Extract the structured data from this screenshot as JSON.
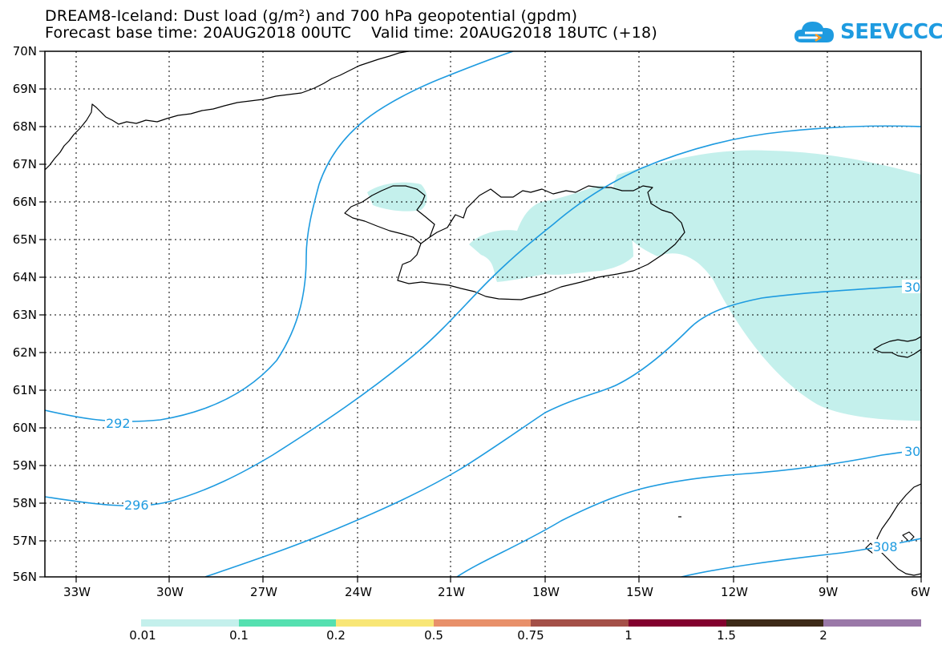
{
  "header": {
    "title": "DREAM8-Iceland: Dust load (g/m²) and 700 hPa geopotential (gpdm)",
    "base_time": "Forecast base time: 20AUG2018 00UTC",
    "valid_time": "Valid time: 20AUG2018 18UTC (+18)"
  },
  "logo": {
    "text": "SEEVCCC",
    "icon": "cloud-icon",
    "color": "#1e9be0"
  },
  "map": {
    "lat_labels": [
      "70N",
      "69N",
      "68N",
      "67N",
      "66N",
      "65N",
      "64N",
      "63N",
      "62N",
      "61N",
      "60N",
      "59N",
      "58N",
      "57N",
      "56N"
    ],
    "lon_labels": [
      "33W",
      "30W",
      "27W",
      "24W",
      "21W",
      "18W",
      "15W",
      "12W",
      "9W",
      "6W"
    ],
    "contour_color": "#1e9be0",
    "dust_color": "#c4f0ec",
    "contour_labels": [
      "292",
      "296",
      "30",
      "30",
      "308"
    ]
  },
  "legend": {
    "colors": [
      "#c4f0ec",
      "#55e0b0",
      "#f8e676",
      "#e8906a",
      "#a45048",
      "#82002e",
      "#3d2a18",
      "#9a78a8"
    ],
    "labels": [
      "0.01",
      "0.1",
      "0.2",
      "0.5",
      "0.75",
      "1",
      "1.5",
      "2"
    ]
  }
}
